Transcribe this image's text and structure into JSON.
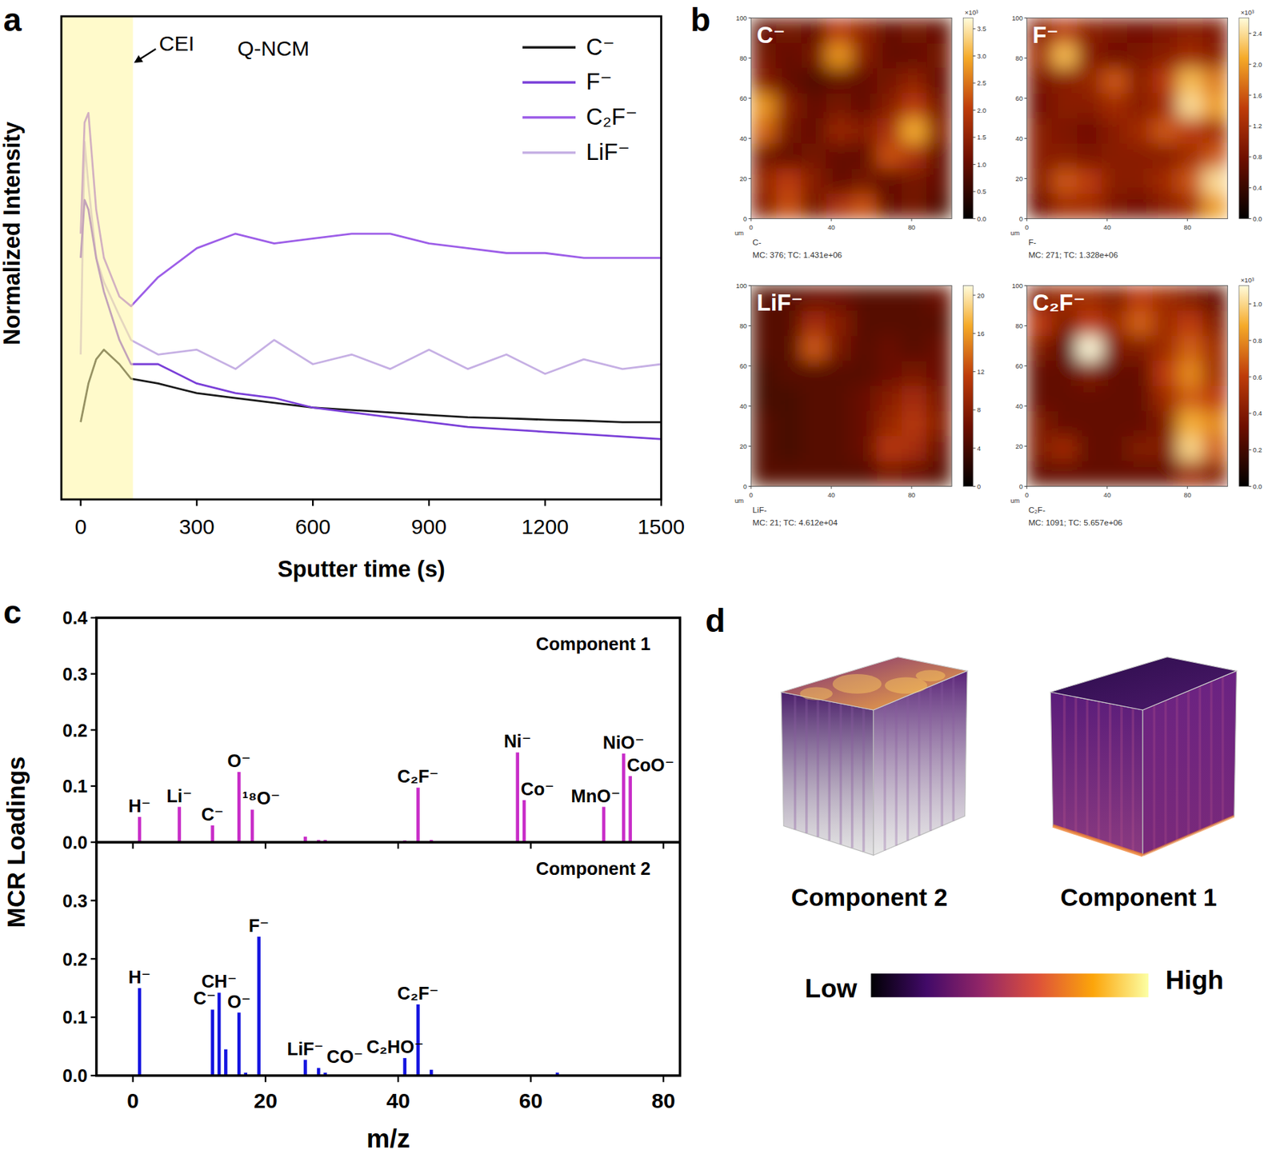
{
  "chart_data": [
    {
      "type": "line",
      "panel_label": "a",
      "title": "Q-NCM",
      "x_label": "Sputter time (s)",
      "y_label": "Normalized Intensity",
      "x": [
        0,
        10,
        20,
        40,
        60,
        100,
        130,
        200,
        300,
        400,
        500,
        600,
        700,
        800,
        900,
        1000,
        1100,
        1200,
        1300,
        1400,
        1500
      ],
      "series": [
        {
          "name": "C⁻",
          "color": "#1a1a1a",
          "values": [
            0.16,
            0.2,
            0.24,
            0.29,
            0.31,
            0.28,
            0.25,
            0.24,
            0.22,
            0.21,
            0.2,
            0.19,
            0.185,
            0.18,
            0.175,
            0.17,
            0.168,
            0.165,
            0.163,
            0.16,
            0.16
          ]
        },
        {
          "name": "F⁻",
          "color": "#7a3fd8",
          "values": [
            0.5,
            0.62,
            0.6,
            0.5,
            0.43,
            0.33,
            0.28,
            0.28,
            0.24,
            0.22,
            0.21,
            0.19,
            0.18,
            0.17,
            0.16,
            0.15,
            0.145,
            0.14,
            0.135,
            0.13,
            0.125
          ]
        },
        {
          "name": "C₂F⁻",
          "color": "#9d5ee8",
          "values": [
            0.55,
            0.78,
            0.8,
            0.6,
            0.5,
            0.42,
            0.4,
            0.46,
            0.52,
            0.55,
            0.53,
            0.54,
            0.55,
            0.55,
            0.53,
            0.52,
            0.51,
            0.51,
            0.5,
            0.5,
            0.5
          ]
        },
        {
          "name": "LiF⁻",
          "color": "#c6b0e4",
          "values": [
            0.3,
            0.74,
            0.65,
            0.5,
            0.45,
            0.38,
            0.33,
            0.3,
            0.31,
            0.27,
            0.33,
            0.28,
            0.3,
            0.27,
            0.31,
            0.27,
            0.3,
            0.26,
            0.29,
            0.27,
            0.28
          ]
        }
      ],
      "xlim": [
        -50,
        1500
      ],
      "xticks": [
        0,
        300,
        600,
        900,
        1200,
        1500
      ],
      "ylim": [
        0,
        1
      ],
      "tick_labels": "x",
      "legend": "top-right",
      "annotations": [
        {
          "text": "CEI",
          "x_range": [
            -50,
            135
          ]
        }
      ]
    },
    {
      "type": "heatmap",
      "panel_label": "b",
      "title": "C⁻",
      "x_unit": "um",
      "xlim": [
        0,
        100
      ],
      "ylim": [
        0,
        100
      ],
      "xticks": [
        0,
        40,
        80
      ],
      "yticks": [
        0,
        20,
        40,
        60,
        80,
        100
      ],
      "cells": [
        [
          1.0,
          1.2,
          1.0,
          2.0,
          1.5,
          1.0,
          1.2,
          1.0
        ],
        [
          1.2,
          1.0,
          1.2,
          2.8,
          1.4,
          1.0,
          1.0,
          1.2
        ],
        [
          1.4,
          1.0,
          0.8,
          1.0,
          1.0,
          1.2,
          1.5,
          1.0
        ],
        [
          2.8,
          1.4,
          1.0,
          1.2,
          1.0,
          1.4,
          2.0,
          1.2
        ],
        [
          2.4,
          1.2,
          1.0,
          1.6,
          1.4,
          1.8,
          3.0,
          1.4
        ],
        [
          1.2,
          1.0,
          1.2,
          1.0,
          1.0,
          2.2,
          1.8,
          1.0
        ],
        [
          1.6,
          2.0,
          1.4,
          1.0,
          1.2,
          1.0,
          1.2,
          1.0
        ],
        [
          1.4,
          2.2,
          1.2,
          1.8,
          2.2,
          1.0,
          1.2,
          0.8
        ]
      ],
      "colorbar_range": [
        0,
        3.7
      ],
      "colorbar_ticks": [
        {
          "value": 0,
          "label": "0.0"
        },
        0.5,
        {
          "value": 1,
          "label": "1.0"
        },
        1.5,
        {
          "value": 2,
          "label": "2.0"
        },
        2.5,
        {
          "value": 3,
          "label": "3.0"
        },
        3.5
      ],
      "colorbar_label": "×10³",
      "footer": [
        "C-",
        "MC: 376; TC: 1.431e+06"
      ]
    },
    {
      "type": "heatmap",
      "title": "F⁻",
      "x_unit": "um",
      "xlim": [
        0,
        100
      ],
      "ylim": [
        0,
        100
      ],
      "xticks": [
        0,
        40,
        80
      ],
      "yticks": [
        0,
        20,
        40,
        60,
        80,
        100
      ],
      "cells": [
        [
          1.0,
          1.4,
          1.0,
          0.9,
          0.8,
          0.9,
          1.0,
          0.9
        ],
        [
          1.2,
          2.2,
          1.0,
          0.8,
          0.9,
          1.0,
          1.2,
          1.0
        ],
        [
          0.9,
          1.0,
          1.1,
          1.6,
          1.0,
          1.4,
          2.2,
          1.8
        ],
        [
          0.8,
          1.0,
          1.0,
          1.2,
          1.0,
          1.2,
          2.4,
          2.0
        ],
        [
          1.0,
          0.9,
          0.8,
          1.0,
          1.2,
          1.6,
          1.4,
          1.2
        ],
        [
          1.0,
          1.0,
          0.9,
          1.0,
          1.0,
          1.0,
          1.2,
          1.6
        ],
        [
          1.0,
          1.6,
          1.4,
          1.0,
          1.0,
          1.2,
          1.6,
          2.4
        ],
        [
          0.8,
          1.2,
          1.2,
          0.9,
          0.8,
          1.0,
          1.2,
          2.0
        ]
      ],
      "colorbar_range": [
        0,
        2.6
      ],
      "colorbar_ticks": [
        {
          "value": 0,
          "label": "0.0"
        },
        0.4,
        0.8,
        1.2,
        1.6,
        {
          "value": 2,
          "label": "2.0"
        },
        2.4
      ],
      "colorbar_label": "×10³",
      "footer": [
        "F-",
        "MC: 271; TC: 1.328e+06"
      ]
    },
    {
      "type": "heatmap",
      "title": "LiF⁻",
      "x_unit": "um",
      "xlim": [
        0,
        100
      ],
      "ylim": [
        0,
        100
      ],
      "xticks": [
        0,
        40,
        80
      ],
      "yticks": [
        0,
        20,
        40,
        60,
        80,
        100
      ],
      "cells": [
        [
          5,
          5,
          6,
          6,
          5,
          5,
          5,
          6
        ],
        [
          5,
          5,
          10,
          8,
          5,
          5,
          5,
          5
        ],
        [
          5,
          5,
          13,
          7,
          5,
          6,
          5,
          6
        ],
        [
          4,
          5,
          5,
          5,
          5,
          6,
          7,
          6
        ],
        [
          4,
          4,
          5,
          5,
          6,
          8,
          10,
          7
        ],
        [
          5,
          4,
          5,
          5,
          6,
          9,
          11,
          8
        ],
        [
          5,
          4,
          5,
          5,
          6,
          11,
          10,
          6
        ],
        [
          5,
          5,
          5,
          5,
          5,
          7,
          6,
          5
        ]
      ],
      "colorbar_range": [
        0,
        21
      ],
      "colorbar_ticks": [
        0,
        4,
        8,
        12,
        16,
        20
      ],
      "footer": [
        "LiF-",
        "MC: 21; TC: 4.612e+04"
      ]
    },
    {
      "type": "heatmap",
      "title": "C₂F⁻",
      "x_unit": "um",
      "xlim": [
        0,
        100
      ],
      "ylim": [
        0,
        100
      ],
      "xticks": [
        0,
        40,
        80
      ],
      "yticks": [
        0,
        20,
        40,
        60,
        80,
        100
      ],
      "cells": [
        [
          0.4,
          0.5,
          0.5,
          0.4,
          0.6,
          0.5,
          0.4,
          0.3
        ],
        [
          0.6,
          0.4,
          0.6,
          0.5,
          0.7,
          0.5,
          0.6,
          0.4
        ],
        [
          0.4,
          0.3,
          1.1,
          0.4,
          0.4,
          0.5,
          0.7,
          0.5
        ],
        [
          0.3,
          0.3,
          0.4,
          0.3,
          0.3,
          0.6,
          0.8,
          0.5
        ],
        [
          0.3,
          0.3,
          0.3,
          0.3,
          0.3,
          0.5,
          0.7,
          0.6
        ],
        [
          0.4,
          0.3,
          0.3,
          0.3,
          0.3,
          0.4,
          0.9,
          0.8
        ],
        [
          0.4,
          0.5,
          0.3,
          0.3,
          0.4,
          0.4,
          1.0,
          0.7
        ],
        [
          0.3,
          0.3,
          0.3,
          0.3,
          0.3,
          0.3,
          0.5,
          0.4
        ]
      ],
      "colorbar_range": [
        0,
        1.1
      ],
      "colorbar_ticks": [
        {
          "value": 0,
          "label": "0.0"
        },
        0.2,
        0.4,
        0.6,
        0.8,
        {
          "value": 1,
          "label": "1.0"
        }
      ],
      "colorbar_label": "×10³",
      "footer": [
        "C₂F-",
        "MC: 1091; TC: 5.657e+06"
      ]
    },
    {
      "type": "stick",
      "panel_label": "c",
      "title": "Component 1",
      "y_label": "MCR Loadings",
      "color": "#c82dc8",
      "x": [
        1,
        7,
        12,
        16,
        18,
        26,
        28,
        29,
        41,
        43,
        45,
        58,
        59,
        64,
        71,
        74,
        75
      ],
      "values": [
        0.045,
        0.063,
        0.03,
        0.125,
        0.058,
        0.01,
        0.004,
        0.004,
        0.003,
        0.097,
        0.004,
        0.16,
        0.075,
        0.002,
        0.063,
        0.158,
        0.118
      ],
      "peak_labels": [
        "H⁻",
        "Li⁻",
        "C⁻",
        "O⁻",
        "¹⁸O⁻",
        null,
        null,
        null,
        null,
        "C₂F⁻",
        null,
        "Ni⁻",
        "Co⁻",
        null,
        "MnO⁻",
        "NiO⁻",
        "CoO⁻"
      ],
      "xlim": [
        -5.5,
        82.5
      ],
      "xticks": [
        0,
        20,
        40,
        60,
        80
      ],
      "ylim": [
        0,
        0.4
      ],
      "yticks": [
        {
          "value": 0,
          "label": "0.0"
        },
        0.1,
        0.2,
        0.3,
        0.4
      ],
      "tick_labels": "y"
    },
    {
      "type": "stick",
      "title": "Component 2",
      "x_label": "m/z",
      "color": "#1414e0",
      "x": [
        1,
        12,
        13,
        14,
        16,
        17,
        19,
        26,
        28,
        29,
        41,
        43,
        45,
        64
      ],
      "values": [
        0.15,
        0.113,
        0.142,
        0.045,
        0.108,
        0.005,
        0.238,
        0.027,
        0.013,
        0.005,
        0.03,
        0.122,
        0.01,
        0.005
      ],
      "peak_labels": [
        "H⁻",
        "C⁻",
        "CH⁻",
        null,
        "O⁻",
        null,
        "F⁻",
        "LiF⁻",
        "CO⁻",
        null,
        "C₂HO⁻",
        "C₂F⁻",
        null,
        null
      ],
      "xlim": [
        -5.5,
        82.5
      ],
      "xticks": [
        0,
        20,
        40,
        60,
        80
      ],
      "ylim": [
        0,
        0.4
      ],
      "yticks": [
        {
          "value": 0,
          "label": "0.0"
        },
        0.1,
        0.2,
        0.3
      ],
      "tick_labels": true
    }
  ],
  "diagram": {
    "panel_label": "d",
    "cubes": [
      "Component 2",
      "Component 1"
    ],
    "colorbar": {
      "low": "Low",
      "high": "High"
    }
  }
}
